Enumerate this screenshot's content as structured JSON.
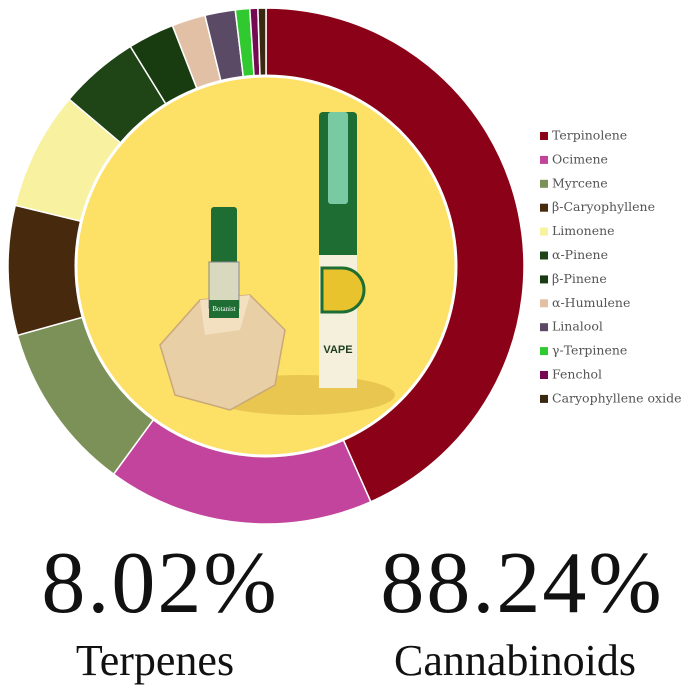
{
  "chart_data": {
    "type": "doughnut",
    "categories": [
      "Terpinolene",
      "Ocimene",
      "Myrcene",
      "β-Caryophyllene",
      "Limonene",
      "α-Pinene",
      "β-Pinene",
      "α-Humulene",
      "Linalool",
      "γ-Terpinene",
      "Fenchol",
      "Caryophyllene oxide"
    ],
    "values": [
      43.3,
      16.7,
      10.6,
      8.1,
      7.4,
      5.0,
      2.9,
      2.1,
      1.9,
      0.9,
      0.5,
      0.5
    ],
    "colors": [
      "#8a0118",
      "#c2449c",
      "#7b9157",
      "#472a0e",
      "#f7f1a0",
      "#1f4415",
      "#183c10",
      "#e2c0a6",
      "#5a4a66",
      "#30c92f",
      "#760a52",
      "#3b2810"
    ],
    "legend": "right"
  },
  "stats": [
    {
      "value_text": "8.02%",
      "label": "Terpenes"
    },
    {
      "value_text": "88.24%",
      "label": "Cannabinoids"
    }
  ],
  "photo": {
    "pen_label": "VAPE",
    "cart_label": "Botanist"
  }
}
